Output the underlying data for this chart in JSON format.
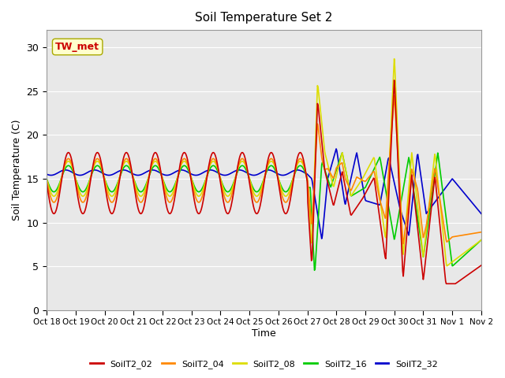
{
  "title": "Soil Temperature Set 2",
  "xlabel": "Time",
  "ylabel": "Soil Temperature (C)",
  "ylim": [
    0,
    32
  ],
  "yticks": [
    0,
    5,
    10,
    15,
    20,
    25,
    30
  ],
  "series_colors": {
    "SoilT2_02": "#cc0000",
    "SoilT2_04": "#ff8800",
    "SoilT2_08": "#dddd00",
    "SoilT2_16": "#00cc00",
    "SoilT2_32": "#0000cc"
  },
  "series_order": [
    "SoilT2_02",
    "SoilT2_04",
    "SoilT2_08",
    "SoilT2_16",
    "SoilT2_32"
  ],
  "annotation_text": "TW_met",
  "annotation_color": "#cc0000",
  "annotation_bg": "#ffffcc",
  "tick_labels": [
    "Oct 18",
    "Oct 19",
    "Oct 20",
    "Oct 21",
    "Oct 22",
    "Oct 23",
    "Oct 24",
    "Oct 25",
    "Oct 26",
    "Oct 27",
    "Oct 28",
    "Oct 29",
    "Oct 30",
    "Oct 31",
    "Nov 1",
    "Nov 2"
  ],
  "background_color": "#e8e8e8",
  "plot_bg": "#e8e8e8",
  "fig_bg": "#ffffff",
  "line_width": 1.2,
  "n_days": 15
}
